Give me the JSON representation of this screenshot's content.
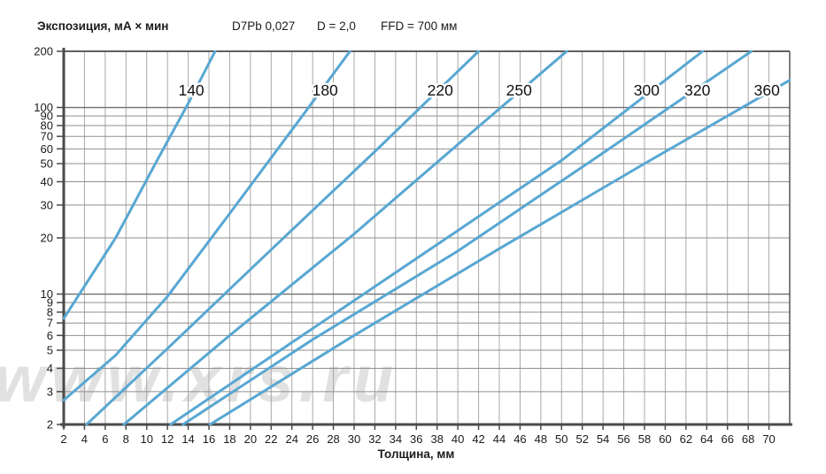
{
  "header": {
    "y_axis_title": "Экспозиция, мА × мин",
    "film_screen": "D7Pb 0,027",
    "density": "D = 2,0",
    "ffd": "FFD = 700 мм"
  },
  "x_axis_title": "Толщина, мм",
  "watermark": "www.xrs.ru",
  "colors": {
    "curve": "#58a7d2",
    "axis": "#4a4a4a",
    "grid_h": "#8f8f8f",
    "grid_h_decade": "#6f6f6f",
    "grid_v": "#a8a8a8",
    "text": "#1b1b1b"
  },
  "chart_data": {
    "type": "line",
    "title": "Экспозиция, мА × мин",
    "xlabel": "Толщина, мм",
    "ylabel": "Экспозиция, мА × мин",
    "x_scale": "linear",
    "y_scale": "log",
    "xlim": [
      2,
      72
    ],
    "ylim": [
      2,
      200
    ],
    "grid": true,
    "legend_position": "labels-on-curves",
    "x_ticks": [
      2,
      4,
      6,
      8,
      10,
      12,
      14,
      16,
      18,
      20,
      22,
      24,
      26,
      28,
      30,
      32,
      34,
      36,
      38,
      40,
      42,
      44,
      46,
      48,
      50,
      52,
      54,
      56,
      58,
      60,
      62,
      64,
      66,
      68,
      70
    ],
    "y_ticks": [
      200,
      100,
      90,
      80,
      70,
      60,
      50,
      40,
      30,
      20,
      10,
      9,
      8,
      7,
      6,
      5,
      4,
      3,
      2
    ],
    "series": [
      {
        "name": "140",
        "kv": 140,
        "label_x": 14.3,
        "points": [
          [
            2,
            7.4
          ],
          [
            7,
            20
          ],
          [
            11,
            52
          ],
          [
            14,
            105
          ],
          [
            16.6,
            200
          ]
        ]
      },
      {
        "name": "180",
        "kv": 180,
        "label_x": 27.2,
        "points": [
          [
            2,
            2.7
          ],
          [
            7,
            4.7
          ],
          [
            12,
            9.7
          ],
          [
            18,
            27
          ],
          [
            25,
            90
          ],
          [
            29.6,
            200
          ]
        ]
      },
      {
        "name": "220",
        "kv": 220,
        "label_x": 38.3,
        "points": [
          [
            4.2,
            2
          ],
          [
            12,
            5.1
          ],
          [
            22,
            17.3
          ],
          [
            32,
            58
          ],
          [
            42,
            200
          ]
        ]
      },
      {
        "name": "250",
        "kv": 250,
        "label_x": 45.9,
        "points": [
          [
            7.8,
            2
          ],
          [
            18,
            6
          ],
          [
            30,
            21
          ],
          [
            42,
            79
          ],
          [
            50.5,
            200
          ]
        ]
      },
      {
        "name": "300",
        "kv": 300,
        "label_x": 58.2,
        "points": [
          [
            12.3,
            2
          ],
          [
            24,
            5.5
          ],
          [
            36,
            15.5
          ],
          [
            50,
            52
          ],
          [
            63.6,
            200
          ]
        ]
      },
      {
        "name": "320",
        "kv": 320,
        "label_x": 63.1,
        "points": [
          [
            13.5,
            2
          ],
          [
            26,
            5.7
          ],
          [
            40,
            17
          ],
          [
            54,
            57
          ],
          [
            68.3,
            200
          ]
        ]
      },
      {
        "name": "360",
        "kv": 360,
        "label_x": 69.8,
        "points": [
          [
            16.1,
            2
          ],
          [
            30,
            6
          ],
          [
            44,
            17.5
          ],
          [
            58,
            50
          ],
          [
            72,
            140
          ]
        ]
      }
    ]
  }
}
